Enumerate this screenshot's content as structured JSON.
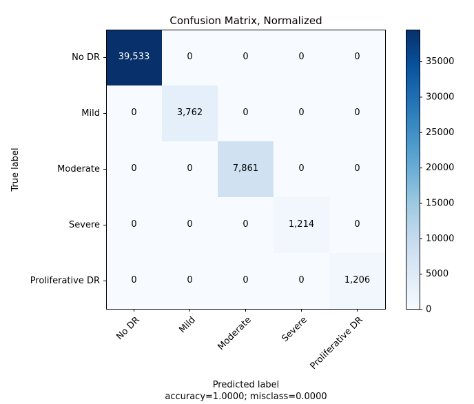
{
  "chart_data": {
    "type": "heatmap",
    "title": "Confusion Matrix, Normalized",
    "xlabel": "Predicted label",
    "xlabel_note": "accuracy=1.0000; misclass=0.0000",
    "ylabel": "True label",
    "x_categories": [
      "No DR",
      "Mild",
      "Moderate",
      "Severe",
      "Proliferative DR"
    ],
    "y_categories": [
      "No DR",
      "Mild",
      "Moderate",
      "Severe",
      "Proliferative DR"
    ],
    "values": [
      [
        39533,
        0,
        0,
        0,
        0
      ],
      [
        0,
        3762,
        0,
        0,
        0
      ],
      [
        0,
        0,
        7861,
        0,
        0
      ],
      [
        0,
        0,
        0,
        1214,
        0
      ],
      [
        0,
        0,
        0,
        0,
        1206
      ]
    ],
    "cell_labels": [
      [
        "39,533",
        "0",
        "0",
        "0",
        "0"
      ],
      [
        "0",
        "3,762",
        "0",
        "0",
        "0"
      ],
      [
        "0",
        "0",
        "7,861",
        "0",
        "0"
      ],
      [
        "0",
        "0",
        "0",
        "1,214",
        "0"
      ],
      [
        "0",
        "0",
        "0",
        "0",
        "1,206"
      ]
    ],
    "colorbar": {
      "min": 0,
      "max": 39533,
      "ticks": [
        0,
        5000,
        10000,
        15000,
        20000,
        25000,
        30000,
        35000
      ],
      "colormap": "Blues"
    },
    "grid": false,
    "legend": "colorbar-right"
  }
}
